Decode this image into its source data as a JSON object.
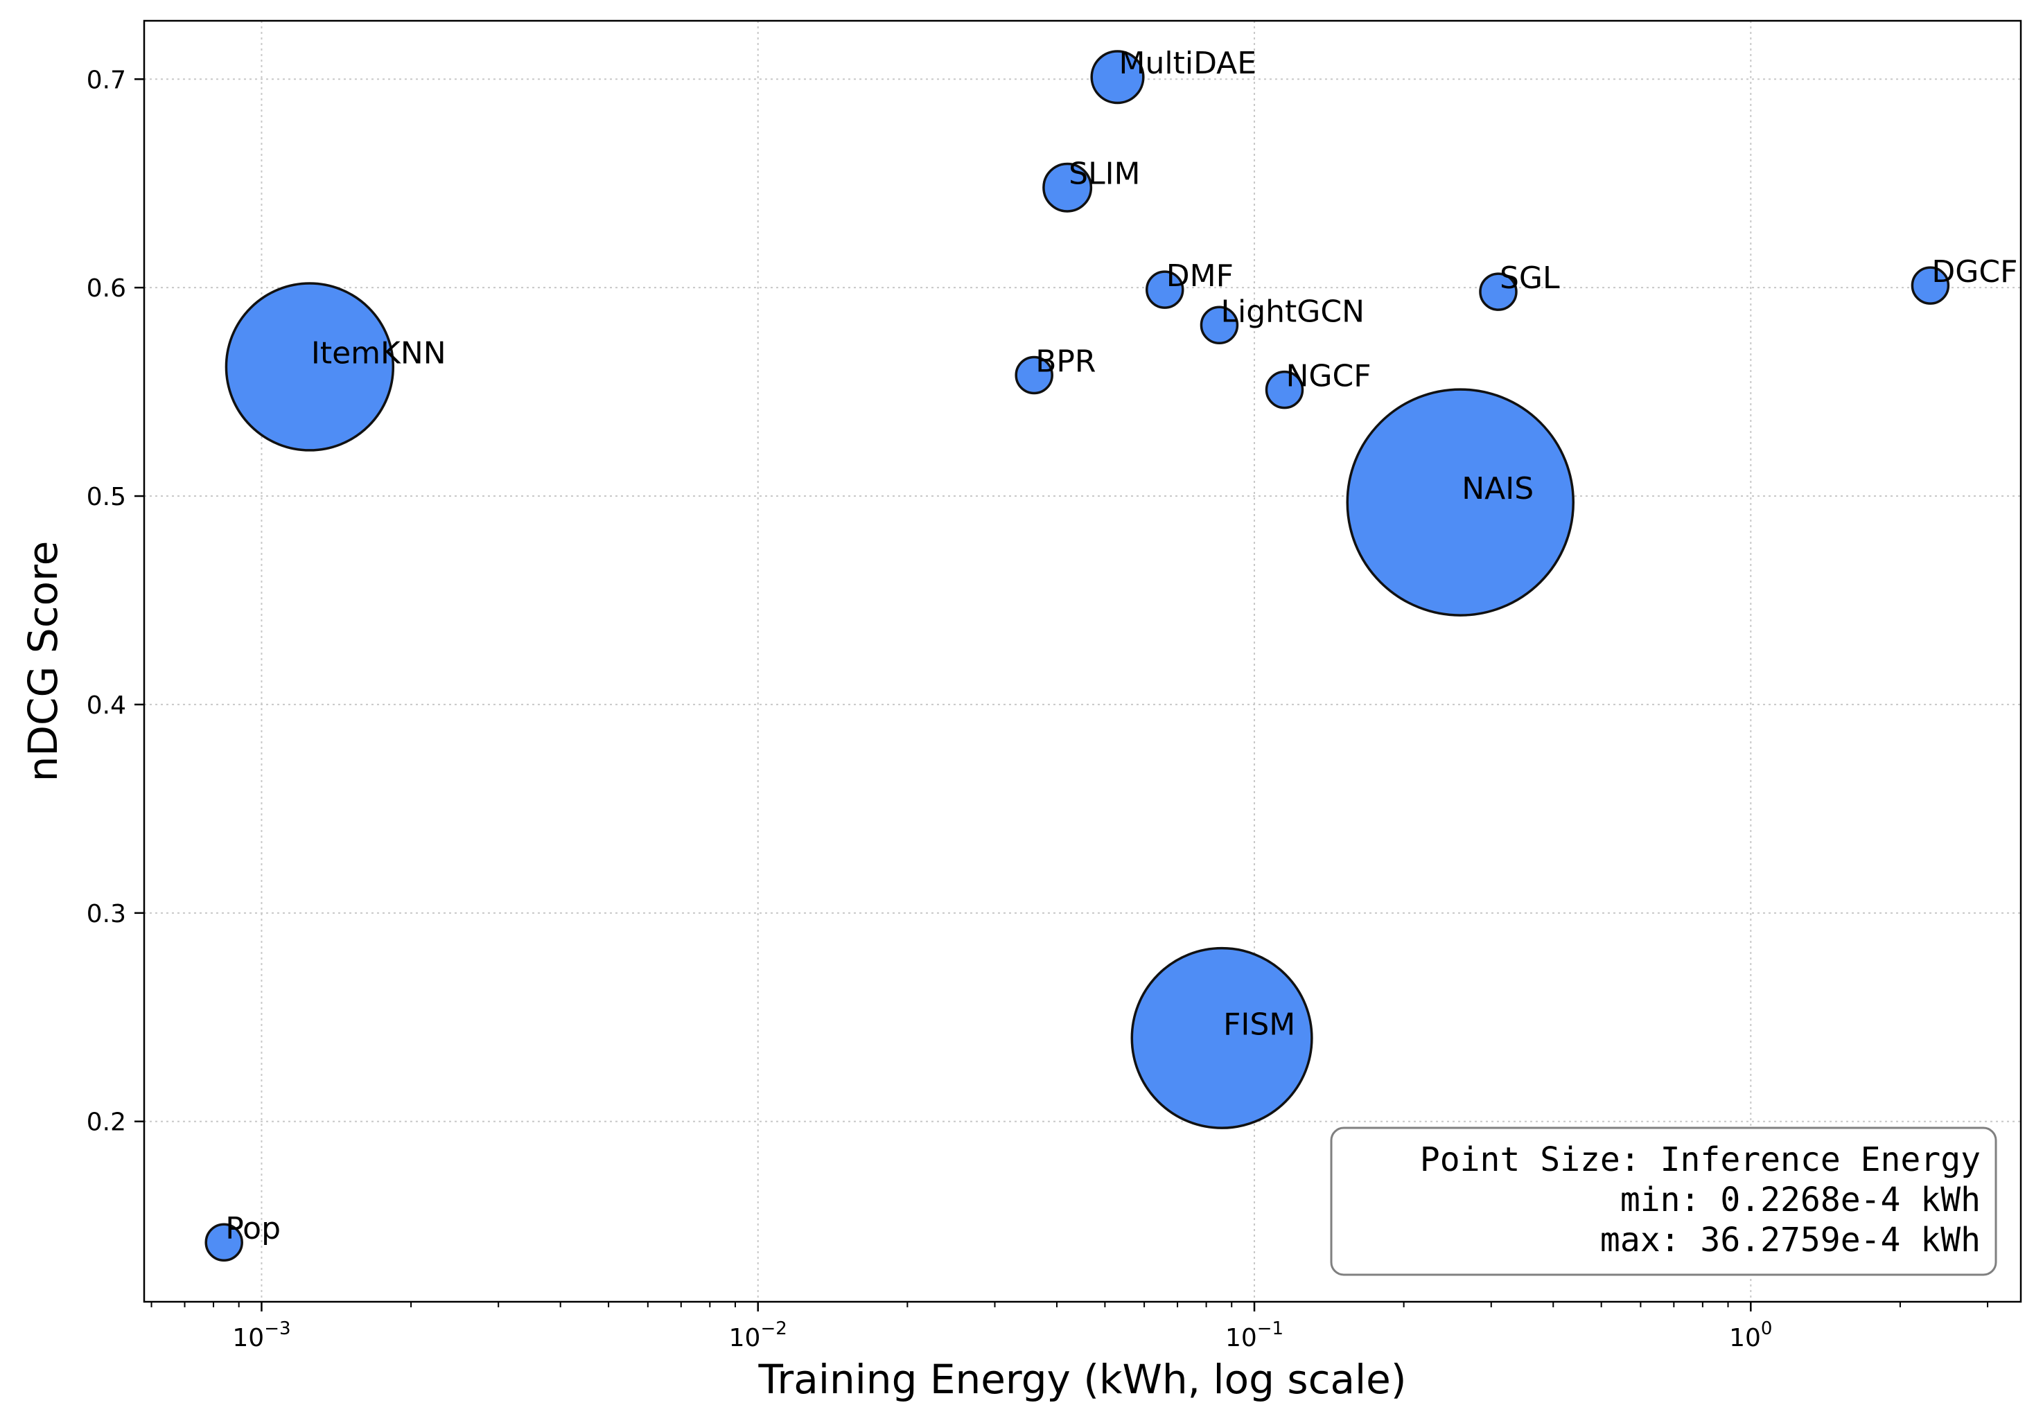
{
  "chart_data": {
    "type": "scatter",
    "title": "",
    "xlabel": "Training Energy (kWh, log scale)",
    "ylabel": "nDCG Score",
    "xscale": "log",
    "xlim": [
      0.00058,
      3.5
    ],
    "ylim": [
      0.1135,
      0.728
    ],
    "grid": true,
    "x_ticks": [
      0.001,
      0.01,
      0.1,
      1
    ],
    "x_tick_labels": [
      {
        "base": "10",
        "exp": "−3"
      },
      {
        "base": "10",
        "exp": "−2"
      },
      {
        "base": "10",
        "exp": "−1"
      },
      {
        "base": "10",
        "exp": "0"
      }
    ],
    "y_ticks": [
      0.2,
      0.3,
      0.4,
      0.5,
      0.6,
      0.7
    ],
    "y_tick_labels": [
      "0.2",
      "0.3",
      "0.4",
      "0.5",
      "0.6",
      "0.7"
    ],
    "size_encoding": "Inference Energy",
    "points": [
      {
        "label": "Pop",
        "x": 0.00084,
        "y": 0.142,
        "size": 0.2268
      },
      {
        "label": "ItemKNN",
        "x": 0.00125,
        "y": 0.562,
        "size": 19.8
      },
      {
        "label": "BPR",
        "x": 0.036,
        "y": 0.558,
        "size": 0.27
      },
      {
        "label": "SLIM",
        "x": 0.042,
        "y": 0.648,
        "size": 1.6
      },
      {
        "label": "MultiDAE",
        "x": 0.053,
        "y": 0.701,
        "size": 1.9
      },
      {
        "label": "DMF",
        "x": 0.066,
        "y": 0.599,
        "size": 0.75
      },
      {
        "label": "LightGCN",
        "x": 0.085,
        "y": 0.582,
        "size": 0.25
      },
      {
        "label": "FISM",
        "x": 0.086,
        "y": 0.24,
        "size": 23.0
      },
      {
        "label": "NGCF",
        "x": 0.115,
        "y": 0.551,
        "size": 0.7
      },
      {
        "label": "NAIS",
        "x": 0.26,
        "y": 0.497,
        "size": 36.2759
      },
      {
        "label": "SGL",
        "x": 0.31,
        "y": 0.598,
        "size": 0.24
      },
      {
        "label": "DGCF",
        "x": 2.3,
        "y": 0.601,
        "size": 0.23
      }
    ],
    "colors": {
      "marker_fill": "#4f8df5",
      "marker_edge": "#111111",
      "grid": "#c8c8c8",
      "legend_border": "#808080"
    },
    "legend_position": "lower right",
    "legend_lines": [
      "Point Size: Inference Energy",
      "min:  0.2268e-4 kWh",
      "max: 36.2759e-4 kWh"
    ]
  }
}
